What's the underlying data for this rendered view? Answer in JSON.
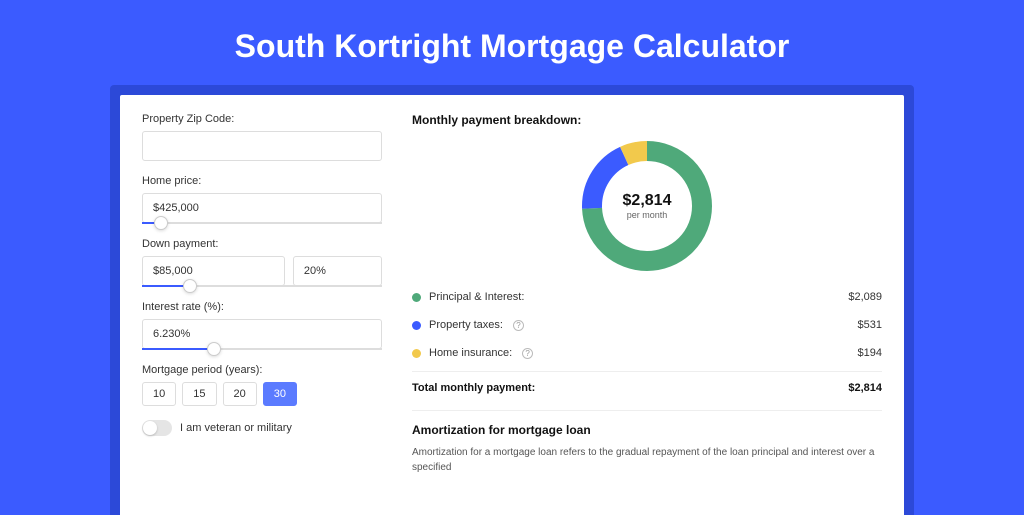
{
  "page": {
    "title": "South Kortright Mortgage Calculator",
    "background_color": "#3b5bff",
    "shadow_color": "#2c49d8",
    "card_color": "#ffffff"
  },
  "form": {
    "zip": {
      "label": "Property Zip Code:",
      "value": ""
    },
    "home_price": {
      "label": "Home price:",
      "value": "$425,000",
      "slider_pct": 8
    },
    "down_payment": {
      "label": "Down payment:",
      "value": "$85,000",
      "pct": "20%",
      "slider_pct": 20
    },
    "interest_rate": {
      "label": "Interest rate (%):",
      "value": "6.230%",
      "slider_pct": 30
    },
    "mortgage_period": {
      "label": "Mortgage period (years):",
      "options": [
        "10",
        "15",
        "20",
        "30"
      ],
      "selected_index": 3
    },
    "veteran": {
      "label": "I am veteran or military",
      "checked": false
    }
  },
  "breakdown": {
    "title": "Monthly payment breakdown:",
    "donut": {
      "center_amount": "$2,814",
      "center_sub": "per month",
      "slices": [
        {
          "key": "principal_interest",
          "value": 2089,
          "color": "#4fa97a"
        },
        {
          "key": "property_taxes",
          "value": 531,
          "color": "#3b5bff"
        },
        {
          "key": "home_insurance",
          "value": 194,
          "color": "#f2c94c"
        }
      ],
      "ring_width": 20,
      "radius": 55
    },
    "rows": [
      {
        "label": "Principal & Interest:",
        "amount": "$2,089",
        "color": "#4fa97a",
        "help": false
      },
      {
        "label": "Property taxes:",
        "amount": "$531",
        "color": "#3b5bff",
        "help": true
      },
      {
        "label": "Home insurance:",
        "amount": "$194",
        "color": "#f2c94c",
        "help": true
      }
    ],
    "total": {
      "label": "Total monthly payment:",
      "amount": "$2,814"
    }
  },
  "amortization": {
    "title": "Amortization for mortgage loan",
    "text": "Amortization for a mortgage loan refers to the gradual repayment of the loan principal and interest over a specified"
  }
}
